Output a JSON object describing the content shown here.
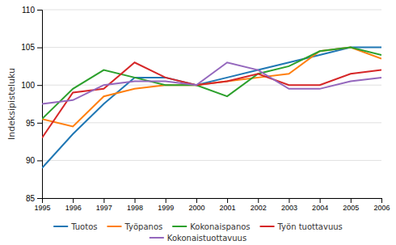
{
  "chart_data": {
    "type": "line",
    "x": [
      1995,
      1996,
      1997,
      1998,
      1999,
      2000,
      2001,
      2002,
      2003,
      2004,
      2005,
      2006
    ],
    "xlim": [
      1995,
      2006
    ],
    "xticks": [
      1995,
      1996,
      1997,
      1998,
      1999,
      2000,
      2001,
      2002,
      2003,
      2004,
      2005,
      2006
    ],
    "y_label": "Indeksipisteluku",
    "ylim": [
      85,
      110
    ],
    "yticks": [
      85,
      90,
      95,
      100,
      105,
      110
    ],
    "grid": true,
    "legend": "bottom",
    "series": [
      {
        "name": "Tuotos",
        "values": [
          89.0,
          93.5,
          97.5,
          101.0,
          101.0,
          100.0,
          101.0,
          102.0,
          103.0,
          104.0,
          105.0,
          105.0
        ]
      },
      {
        "name": "Työpanos",
        "values": [
          95.5,
          94.5,
          98.5,
          99.5,
          100.0,
          100.0,
          100.5,
          101.0,
          101.5,
          104.5,
          105.0,
          103.5
        ]
      },
      {
        "name": "Kokonaispanos",
        "values": [
          95.5,
          99.5,
          102.0,
          101.0,
          100.0,
          100.0,
          98.5,
          101.5,
          102.5,
          104.5,
          105.0,
          104.0
        ]
      },
      {
        "name": "Työn tuottavuus",
        "values": [
          93.0,
          99.0,
          99.5,
          103.0,
          101.0,
          100.0,
          100.5,
          101.5,
          100.0,
          100.0,
          101.5,
          102.0
        ]
      },
      {
        "name": "Kokonaistuottavuus",
        "values": [
          97.5,
          98.0,
          100.0,
          100.5,
          100.5,
          100.0,
          103.0,
          102.0,
          99.5,
          99.5,
          100.5,
          101.0
        ]
      }
    ]
  }
}
